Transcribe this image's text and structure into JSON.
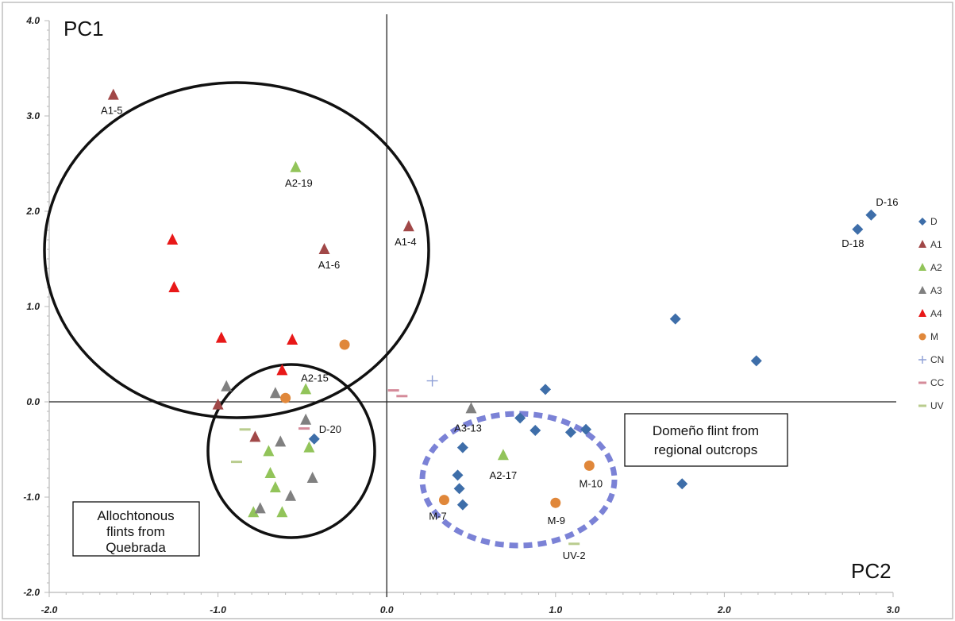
{
  "chart_data": {
    "type": "scatter",
    "axis_names": {
      "x": "PC2",
      "y": "PC1"
    },
    "xlim": [
      -2.0,
      3.0
    ],
    "ylim": [
      -2.0,
      4.0
    ],
    "x_tick_labels": [
      "-2.0",
      "-1.0",
      "0.0",
      "1.0",
      "2.0",
      "3.0"
    ],
    "y_tick_labels": [
      "4.0",
      "3.0",
      "2.0",
      "1.0",
      "0.0",
      "-1.0",
      "-2.0"
    ],
    "legend_position": "right",
    "series": [
      {
        "name": "D",
        "marker": "diamond",
        "color": "#3e6ea9",
        "points": [
          {
            "x": 2.87,
            "y": 1.96,
            "label": "D-16"
          },
          {
            "x": 2.79,
            "y": 1.81,
            "label": "D-18"
          },
          {
            "x": 1.71,
            "y": 0.87
          },
          {
            "x": 2.19,
            "y": 0.43
          },
          {
            "x": 0.94,
            "y": 0.13
          },
          {
            "x": 0.79,
            "y": -0.17
          },
          {
            "x": 0.88,
            "y": -0.3
          },
          {
            "x": 1.09,
            "y": -0.32
          },
          {
            "x": 1.18,
            "y": -0.29
          },
          {
            "x": 0.45,
            "y": -0.48
          },
          {
            "x": 0.42,
            "y": -0.77
          },
          {
            "x": 0.43,
            "y": -0.91
          },
          {
            "x": 0.45,
            "y": -1.08
          },
          {
            "x": 1.75,
            "y": -0.86
          },
          {
            "x": -0.43,
            "y": -0.39,
            "label": "D-20"
          }
        ]
      },
      {
        "name": "A1",
        "marker": "triangle",
        "color": "#a14848",
        "points": [
          {
            "x": -1.62,
            "y": 3.22,
            "label": "A1-5"
          },
          {
            "x": 0.13,
            "y": 1.84,
            "label": "A1-4"
          },
          {
            "x": -0.37,
            "y": 1.6,
            "label": "A1-6"
          },
          {
            "x": -1.0,
            "y": -0.03
          },
          {
            "x": -0.78,
            "y": -0.37
          }
        ]
      },
      {
        "name": "A2",
        "marker": "triangle",
        "color": "#92c45a",
        "points": [
          {
            "x": -0.54,
            "y": 2.46,
            "label": "A2-19"
          },
          {
            "x": -0.48,
            "y": 0.13,
            "label": "A2-15"
          },
          {
            "x": 0.69,
            "y": -0.56,
            "label": "A2-17"
          },
          {
            "x": -0.7,
            "y": -0.52
          },
          {
            "x": -0.46,
            "y": -0.48
          },
          {
            "x": -0.69,
            "y": -0.75
          },
          {
            "x": -0.66,
            "y": -0.9
          },
          {
            "x": -0.79,
            "y": -1.16
          },
          {
            "x": -0.62,
            "y": -1.16
          }
        ]
      },
      {
        "name": "A3",
        "marker": "triangle",
        "color": "#808080",
        "points": [
          {
            "x": 0.5,
            "y": -0.07,
            "label": "A3-13"
          },
          {
            "x": -0.95,
            "y": 0.16
          },
          {
            "x": -0.66,
            "y": 0.09
          },
          {
            "x": -0.48,
            "y": -0.19
          },
          {
            "x": -0.63,
            "y": -0.42
          },
          {
            "x": -0.44,
            "y": -0.8
          },
          {
            "x": -0.57,
            "y": -0.99
          },
          {
            "x": -0.75,
            "y": -1.12
          }
        ]
      },
      {
        "name": "A4",
        "marker": "triangle",
        "color": "#e81818",
        "points": [
          {
            "x": -1.27,
            "y": 1.7
          },
          {
            "x": -1.26,
            "y": 1.2
          },
          {
            "x": -0.98,
            "y": 0.67
          },
          {
            "x": -0.56,
            "y": 0.65
          },
          {
            "x": -0.62,
            "y": 0.33
          }
        ]
      },
      {
        "name": "M",
        "marker": "circle",
        "color": "#e0873a",
        "points": [
          {
            "x": -0.25,
            "y": 0.6
          },
          {
            "x": -0.6,
            "y": 0.04
          },
          {
            "x": 1.2,
            "y": -0.67,
            "label": "M-10"
          },
          {
            "x": 1.0,
            "y": -1.06,
            "label": "M-9"
          },
          {
            "x": 0.34,
            "y": -1.03,
            "label": "M-7"
          }
        ]
      },
      {
        "name": "CN",
        "marker": "plus",
        "color": "#8e9fd6",
        "points": [
          {
            "x": 0.27,
            "y": 0.22
          }
        ]
      },
      {
        "name": "CC",
        "marker": "dash",
        "color": "#d58b9a",
        "points": [
          {
            "x": 0.04,
            "y": 0.12
          },
          {
            "x": 0.09,
            "y": 0.06
          },
          {
            "x": -0.49,
            "y": -0.28
          }
        ]
      },
      {
        "name": "UV",
        "marker": "dash",
        "color": "#b9cc8e",
        "points": [
          {
            "x": 1.11,
            "y": -1.49,
            "label": "UV-2"
          },
          {
            "x": -0.84,
            "y": -0.29
          },
          {
            "x": -0.89,
            "y": -0.63
          }
        ]
      }
    ],
    "annotations": {
      "allochtonous": {
        "lines": [
          "Allochtonous",
          "flints from",
          "Quebrada"
        ]
      },
      "domeno": {
        "lines": [
          "Domeño flint from",
          "regional outcrops"
        ]
      }
    }
  }
}
